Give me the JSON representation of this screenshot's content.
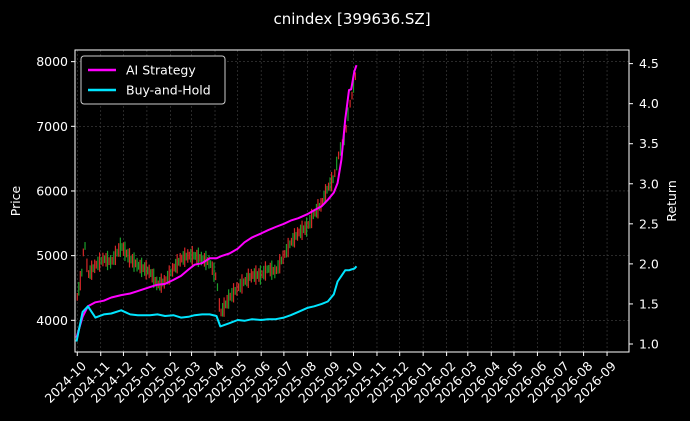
{
  "chart_data": {
    "type": "line",
    "title": "cnindex [399636.SZ]",
    "ylabel": "Price",
    "y2label": "Return",
    "grid": true,
    "legend_position": "top-left",
    "x_ticks": [
      "2024-10",
      "2024-11",
      "2024-12",
      "2025-01",
      "2025-02",
      "2025-03",
      "2025-04",
      "2025-05",
      "2025-06",
      "2025-07",
      "2025-08",
      "2025-09",
      "2025-10",
      "2025-11",
      "2025-12",
      "2026-01",
      "2026-02",
      "2026-03",
      "2026-04",
      "2026-05",
      "2026-06",
      "2026-07",
      "2026-08",
      "2026-09"
    ],
    "y_ticks": [
      4000,
      5000,
      6000,
      7000,
      8000
    ],
    "y2_ticks": [
      "1.0",
      "1.5",
      "2.0",
      "2.5",
      "3.0",
      "3.5",
      "4.0",
      "4.5"
    ],
    "xlim": [
      "2024-09-28",
      "2026-09-30"
    ],
    "ylim": [
      3510,
      8180
    ],
    "y2lim": [
      0.9,
      4.67
    ],
    "colors": {
      "ai": "#ff00ff",
      "bh": "#00e5ff",
      "up": "#d62728",
      "down": "#1a9e2a",
      "grid": "#444444"
    },
    "series": [
      {
        "name": "AI Strategy",
        "axis": "right",
        "color": "#ff00ff",
        "x": [
          "2024-09-30",
          "2024-10-08",
          "2024-10-15",
          "2024-10-25",
          "2024-11-05",
          "2024-11-15",
          "2024-11-28",
          "2024-12-10",
          "2024-12-20",
          "2025-01-05",
          "2025-01-15",
          "2025-01-25",
          "2025-02-05",
          "2025-02-15",
          "2025-02-25",
          "2025-03-05",
          "2025-03-15",
          "2025-03-25",
          "2025-04-03",
          "2025-04-10",
          "2025-04-20",
          "2025-05-01",
          "2025-05-10",
          "2025-05-20",
          "2025-06-01",
          "2025-06-10",
          "2025-06-20",
          "2025-07-01",
          "2025-07-10",
          "2025-07-20",
          "2025-08-01",
          "2025-08-10",
          "2025-08-20",
          "2025-08-28",
          "2025-09-05",
          "2025-09-10",
          "2025-09-15",
          "2025-09-20",
          "2025-09-25",
          "2025-09-28",
          "2025-10-02",
          "2025-10-05"
        ],
        "values": [
          1.08,
          1.34,
          1.47,
          1.52,
          1.54,
          1.58,
          1.61,
          1.63,
          1.66,
          1.71,
          1.74,
          1.75,
          1.8,
          1.85,
          1.93,
          1.99,
          2.01,
          2.07,
          2.07,
          2.1,
          2.13,
          2.19,
          2.27,
          2.33,
          2.38,
          2.42,
          2.46,
          2.5,
          2.54,
          2.57,
          2.62,
          2.67,
          2.72,
          2.8,
          2.89,
          3.01,
          3.3,
          3.8,
          4.17,
          4.18,
          4.4,
          4.48
        ]
      },
      {
        "name": "Buy-and-Hold",
        "axis": "right",
        "color": "#00e5ff",
        "x": [
          "2024-09-30",
          "2024-10-08",
          "2024-10-15",
          "2024-10-25",
          "2024-11-05",
          "2024-11-15",
          "2024-11-28",
          "2024-12-10",
          "2024-12-20",
          "2025-01-05",
          "2025-01-15",
          "2025-01-25",
          "2025-02-05",
          "2025-02-15",
          "2025-02-25",
          "2025-03-05",
          "2025-03-15",
          "2025-03-25",
          "2025-04-03",
          "2025-04-08",
          "2025-04-20",
          "2025-05-01",
          "2025-05-10",
          "2025-05-20",
          "2025-06-01",
          "2025-06-10",
          "2025-06-20",
          "2025-07-01",
          "2025-07-10",
          "2025-07-20",
          "2025-08-01",
          "2025-08-10",
          "2025-08-20",
          "2025-08-28",
          "2025-09-05",
          "2025-09-10",
          "2025-09-15",
          "2025-09-20",
          "2025-09-25",
          "2025-09-28",
          "2025-10-02",
          "2025-10-05"
        ],
        "values": [
          1.03,
          1.4,
          1.47,
          1.33,
          1.37,
          1.38,
          1.42,
          1.37,
          1.36,
          1.36,
          1.37,
          1.35,
          1.36,
          1.33,
          1.34,
          1.36,
          1.37,
          1.37,
          1.35,
          1.22,
          1.26,
          1.3,
          1.29,
          1.31,
          1.3,
          1.31,
          1.31,
          1.33,
          1.36,
          1.4,
          1.45,
          1.47,
          1.5,
          1.53,
          1.62,
          1.78,
          1.85,
          1.92,
          1.92,
          1.93,
          1.94,
          1.97
        ]
      }
    ],
    "price": {
      "axis": "left",
      "x": [
        "2024-09-30",
        "2024-10-08",
        "2024-10-10",
        "2024-10-15",
        "2024-10-25",
        "2024-11-05",
        "2024-11-15",
        "2024-11-28",
        "2024-12-10",
        "2024-12-20",
        "2025-01-05",
        "2025-01-15",
        "2025-01-25",
        "2025-02-05",
        "2025-02-15",
        "2025-02-25",
        "2025-03-05",
        "2025-03-15",
        "2025-03-25",
        "2025-04-03",
        "2025-04-08",
        "2025-04-20",
        "2025-05-01",
        "2025-05-10",
        "2025-05-20",
        "2025-06-01",
        "2025-06-10",
        "2025-06-20",
        "2025-07-01",
        "2025-07-10",
        "2025-07-20",
        "2025-08-01",
        "2025-08-10",
        "2025-08-20",
        "2025-08-28",
        "2025-09-05",
        "2025-09-10",
        "2025-09-15",
        "2025-09-20",
        "2025-09-25",
        "2025-09-28",
        "2025-10-02",
        "2025-10-05"
      ],
      "values": [
        4300,
        4800,
        5300,
        4700,
        4850,
        4950,
        4900,
        5150,
        4950,
        4850,
        4750,
        4550,
        4600,
        4800,
        4950,
        5000,
        5000,
        4950,
        4900,
        4650,
        4100,
        4350,
        4500,
        4600,
        4700,
        4700,
        4800,
        4750,
        5000,
        5200,
        5350,
        5450,
        5650,
        5800,
        6050,
        6200,
        6500,
        6700,
        6850,
        7300,
        7400,
        7700,
        7850
      ]
    }
  }
}
